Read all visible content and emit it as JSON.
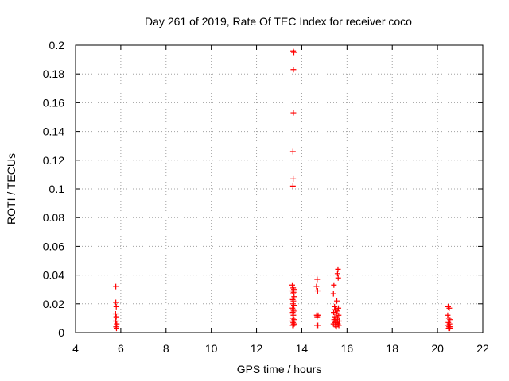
{
  "chart_data": {
    "type": "scatter",
    "title": "Day 261 of 2019, Rate Of TEC Index for receiver coco",
    "xlabel": "GPS time / hours",
    "ylabel": "ROTI / TECUs",
    "xlim": [
      4,
      22
    ],
    "ylim": [
      0,
      0.2
    ],
    "x_ticks": [
      "4",
      "6",
      "8",
      "10",
      "12",
      "14",
      "16",
      "18",
      "20",
      "22"
    ],
    "y_ticks": [
      "0",
      "0.02",
      "0.04",
      "0.06",
      "0.08",
      "0.1",
      "0.12",
      "0.14",
      "0.16",
      "0.18",
      "0.2"
    ],
    "grid": true,
    "marker": "+",
    "color": "#ff0000",
    "series": [
      {
        "points": [
          [
            5.78,
            0.032
          ],
          [
            5.78,
            0.021
          ],
          [
            5.8,
            0.018
          ],
          [
            5.77,
            0.013
          ],
          [
            5.8,
            0.011
          ],
          [
            5.78,
            0.008
          ],
          [
            5.82,
            0.006
          ],
          [
            5.79,
            0.004
          ],
          [
            5.81,
            0.003
          ],
          [
            13.62,
            0.196
          ],
          [
            13.65,
            0.195
          ],
          [
            13.63,
            0.183
          ],
          [
            13.63,
            0.153
          ],
          [
            13.61,
            0.126
          ],
          [
            13.62,
            0.107
          ],
          [
            13.61,
            0.102
          ],
          [
            13.58,
            0.033
          ],
          [
            13.62,
            0.031
          ],
          [
            13.65,
            0.03
          ],
          [
            13.6,
            0.029
          ],
          [
            13.64,
            0.028
          ],
          [
            13.62,
            0.027
          ],
          [
            13.66,
            0.025
          ],
          [
            13.6,
            0.023
          ],
          [
            13.63,
            0.022
          ],
          [
            13.61,
            0.02
          ],
          [
            13.65,
            0.019
          ],
          [
            13.59,
            0.017
          ],
          [
            13.62,
            0.016
          ],
          [
            13.64,
            0.015
          ],
          [
            13.6,
            0.014
          ],
          [
            13.63,
            0.012
          ],
          [
            13.61,
            0.01
          ],
          [
            13.66,
            0.009
          ],
          [
            13.59,
            0.008
          ],
          [
            13.62,
            0.007
          ],
          [
            13.64,
            0.006
          ],
          [
            13.6,
            0.005
          ],
          [
            13.63,
            0.005
          ],
          [
            13.67,
            0.006
          ],
          [
            14.68,
            0.037
          ],
          [
            14.65,
            0.032
          ],
          [
            14.7,
            0.029
          ],
          [
            14.66,
            0.012
          ],
          [
            14.72,
            0.012
          ],
          [
            14.68,
            0.011
          ],
          [
            14.67,
            0.005
          ],
          [
            14.71,
            0.005
          ],
          [
            15.42,
            0.033
          ],
          [
            15.6,
            0.044
          ],
          [
            15.58,
            0.041
          ],
          [
            15.61,
            0.038
          ],
          [
            15.4,
            0.027
          ],
          [
            15.55,
            0.022
          ],
          [
            15.45,
            0.018
          ],
          [
            15.62,
            0.017
          ],
          [
            15.48,
            0.016
          ],
          [
            15.57,
            0.015
          ],
          [
            15.41,
            0.014
          ],
          [
            15.53,
            0.013
          ],
          [
            15.63,
            0.012
          ],
          [
            15.46,
            0.011
          ],
          [
            15.58,
            0.01
          ],
          [
            15.43,
            0.009
          ],
          [
            15.51,
            0.009
          ],
          [
            15.65,
            0.008
          ],
          [
            15.47,
            0.007
          ],
          [
            15.56,
            0.007
          ],
          [
            15.4,
            0.006
          ],
          [
            15.6,
            0.006
          ],
          [
            15.49,
            0.005
          ],
          [
            15.64,
            0.005
          ],
          [
            15.53,
            0.004
          ],
          [
            20.47,
            0.018
          ],
          [
            20.52,
            0.017
          ],
          [
            20.45,
            0.012
          ],
          [
            20.5,
            0.01
          ],
          [
            20.55,
            0.009
          ],
          [
            20.48,
            0.007
          ],
          [
            20.53,
            0.006
          ],
          [
            20.46,
            0.005
          ],
          [
            20.51,
            0.004
          ],
          [
            20.56,
            0.004
          ],
          [
            20.49,
            0.003
          ],
          [
            20.54,
            0.003
          ]
        ]
      }
    ]
  }
}
